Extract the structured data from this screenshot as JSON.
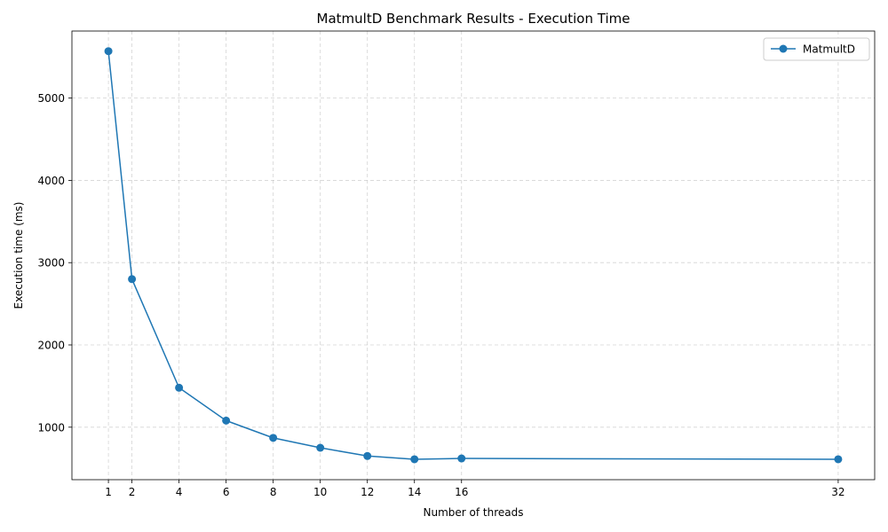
{
  "chart_data": {
    "type": "line",
    "title": "MatmultD Benchmark Results - Execution Time",
    "xlabel": "Number of threads",
    "ylabel": "Execution time (ms)",
    "xlim": [
      -0.55,
      33.55
    ],
    "ylim": [
      362,
      5815
    ],
    "x_ticks": [
      1,
      2,
      4,
      6,
      8,
      10,
      12,
      14,
      16,
      32
    ],
    "y_ticks": [
      1000,
      2000,
      3000,
      4000,
      5000
    ],
    "grid": true,
    "legend_position": "top-right",
    "series": [
      {
        "name": "MatmultD",
        "color": "#1f77b4",
        "marker": "circle",
        "x": [
          1,
          2,
          4,
          6,
          8,
          10,
          12,
          14,
          16,
          32
        ],
        "y": [
          5570,
          2800,
          1480,
          1080,
          870,
          750,
          650,
          610,
          620,
          610
        ]
      }
    ]
  }
}
